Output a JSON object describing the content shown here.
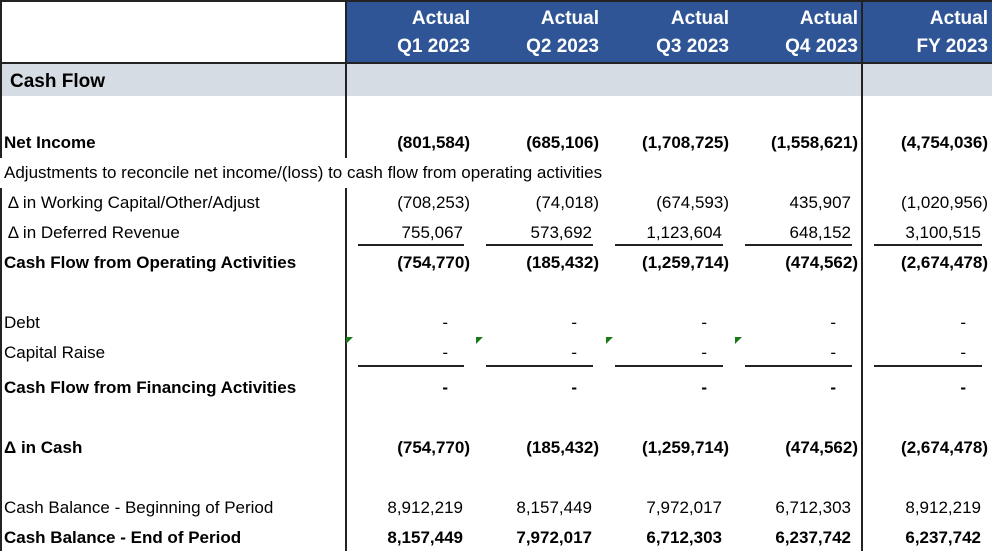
{
  "header": {
    "columns": [
      {
        "line1": "Actual",
        "line2": "Q1 2023"
      },
      {
        "line1": "Actual",
        "line2": "Q2 2023"
      },
      {
        "line1": "Actual",
        "line2": "Q3 2023"
      },
      {
        "line1": "Actual",
        "line2": "Q4 2023"
      },
      {
        "line1": "Actual",
        "line2": "FY 2023"
      }
    ],
    "header_color": "#2f5597"
  },
  "section": {
    "title": "Cash Flow",
    "band_color": "#d6dce4"
  },
  "rows": [
    {
      "label": "Net Income",
      "bold": true,
      "values": [
        "(801,584)",
        "(685,106)",
        "(1,708,725)",
        "(1,558,621)",
        "(4,754,036)"
      ]
    },
    {
      "label": "Adjustments to reconcile net income/(loss) to cash flow from operating activities",
      "bold": false,
      "values": []
    },
    {
      "label": " Δ in Working Capital/Other/Adjust",
      "bold": false,
      "values": [
        "(708,253)",
        "(74,018)",
        "(674,593)",
        "435,907",
        "(1,020,956)"
      ]
    },
    {
      "label": " Δ in Deferred Revenue",
      "bold": false,
      "underline": true,
      "values": [
        "755,067",
        "573,692",
        "1,123,604",
        "648,152",
        "3,100,515"
      ]
    },
    {
      "label": "Cash Flow from Operating Activities",
      "bold": true,
      "values": [
        "(754,770)",
        "(185,432)",
        "(1,259,714)",
        "(474,562)",
        "(2,674,478)"
      ]
    },
    {
      "label": "Debt",
      "bold": false,
      "values": [
        "-",
        "-",
        "-",
        "-",
        "-"
      ]
    },
    {
      "label": "Capital Raise",
      "bold": false,
      "underline": true,
      "values": [
        "-",
        "-",
        "-",
        "-",
        "-"
      ]
    },
    {
      "label": "Cash Flow from Financing Activities",
      "bold": true,
      "values": [
        "-",
        "-",
        "-",
        "-",
        "-"
      ]
    },
    {
      "label": "Δ in Cash",
      "bold": true,
      "values": [
        "(754,770)",
        "(185,432)",
        "(1,259,714)",
        "(474,562)",
        "(2,674,478)"
      ]
    },
    {
      "label": "Cash Balance - Beginning of Period",
      "bold": false,
      "values": [
        "8,912,219",
        "8,157,449",
        "7,972,017",
        "6,712,303",
        "8,912,219"
      ]
    },
    {
      "label": "Cash Balance - End of Period",
      "bold": true,
      "values": [
        "8,157,449",
        "7,972,017",
        "6,712,303",
        "6,237,742",
        "6,237,742"
      ]
    }
  ]
}
